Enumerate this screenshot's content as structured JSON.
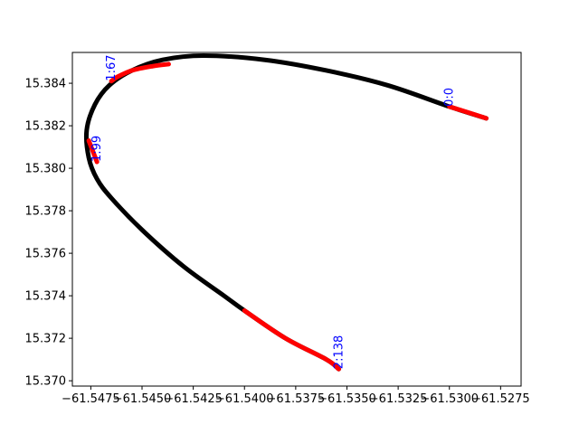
{
  "chart_data": {
    "type": "line",
    "title": "",
    "xlabel": "",
    "ylabel": "",
    "xlim": [
      -61.5484,
      -61.5265
    ],
    "ylim": [
      15.36975,
      15.38545
    ],
    "xticks": [
      -61.5475,
      -61.545,
      -61.5425,
      -61.54,
      -61.5375,
      -61.535,
      -61.5325,
      -61.53,
      -61.5275
    ],
    "xtick_labels": [
      "−61.5475",
      "−61.5450",
      "−61.5425",
      "−61.5400",
      "−61.5375",
      "−61.5350",
      "−61.5325",
      "−61.5300",
      "−61.5275"
    ],
    "yticks": [
      15.37,
      15.372,
      15.374,
      15.376,
      15.378,
      15.38,
      15.382,
      15.384
    ],
    "ytick_labels": [
      "15.370",
      "15.372",
      "15.374",
      "15.376",
      "15.378",
      "15.380",
      "15.382",
      "15.384"
    ],
    "grid": false,
    "track": {
      "x": [
        -61.5282,
        -61.53,
        -61.533,
        -61.536,
        -61.539,
        -61.542,
        -61.544,
        -61.5455,
        -61.5466,
        -61.5473,
        -61.5477,
        -61.5476,
        -61.5472,
        -61.5465,
        -61.545,
        -61.543,
        -61.541,
        -61.54,
        -61.538,
        -61.536,
        -61.5354
      ],
      "y": [
        15.38235,
        15.3829,
        15.3839,
        15.3846,
        15.3851,
        15.3853,
        15.3851,
        15.3846,
        15.3839,
        15.383,
        15.3818,
        15.3805,
        15.3795,
        15.3786,
        15.3771,
        15.3754,
        15.374,
        15.3733,
        15.372,
        15.371,
        15.37055
      ]
    },
    "highlight_segments": [
      {
        "x": [
          -61.5282,
          -61.529,
          -61.53
        ],
        "y": [
          15.38235,
          15.3826,
          15.3829
        ]
      },
      {
        "x": [
          -61.5437,
          -61.5445,
          -61.5455,
          -61.5462,
          -61.5465
        ],
        "y": [
          15.3849,
          15.3848,
          15.3846,
          15.3843,
          15.3841
        ]
      },
      {
        "x": [
          -61.5476,
          -61.5474,
          -61.5472
        ],
        "y": [
          15.3813,
          15.3808,
          15.3803
        ]
      },
      {
        "x": [
          -61.54,
          -61.538,
          -61.536,
          -61.5354
        ],
        "y": [
          15.3733,
          15.372,
          15.371,
          15.37055
        ]
      }
    ],
    "annotations": [
      {
        "text": "0:0",
        "x": -61.53,
        "y": 15.3829
      },
      {
        "text": "1:67",
        "x": -61.5465,
        "y": 15.3841
      },
      {
        "text": "1:99",
        "x": -61.5472,
        "y": 15.3803
      },
      {
        "text": "2:138",
        "x": -61.5354,
        "y": 15.37055
      }
    ],
    "colors": {
      "track": "#000000",
      "highlight": "#ff0000",
      "annotation": "#0000ff"
    }
  }
}
